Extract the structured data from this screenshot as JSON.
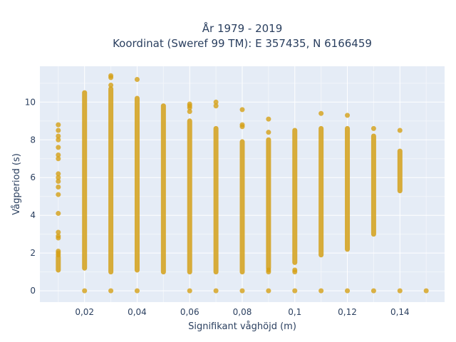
{
  "chart_data": {
    "type": "scatter",
    "title_line1": "År 1979 - 2019",
    "title_line2": "Koordinat (Sweref 99 TM): E 357435, N 6166459",
    "xlabel": "Signifikant våghöjd (m)",
    "ylabel": "Vågperiod (s)",
    "xlim": [
      0.003,
      0.157
    ],
    "ylim": [
      -0.6,
      11.9
    ],
    "x_ticks": [
      0.02,
      0.04,
      0.06,
      0.08,
      0.1,
      0.12,
      0.14
    ],
    "x_tick_labels": [
      "0,02",
      "0,04",
      "0,06",
      "0,08",
      "0,1",
      "0,12",
      "0,14"
    ],
    "y_ticks": [
      0,
      2,
      4,
      6,
      8,
      10
    ],
    "y_tick_labels": [
      "0",
      "2",
      "4",
      "6",
      "8",
      "10"
    ],
    "grid": true,
    "marker_color": "#d4a017",
    "background_color": "#e5ecf6",
    "columns": [
      {
        "x": 0.01,
        "band": [
          1.1,
          1.8
        ],
        "points": [
          8.8,
          8.5,
          8.2,
          8.0,
          7.6,
          7.2,
          7.0,
          6.2,
          6.0,
          5.8,
          5.5,
          5.1,
          4.1,
          3.1,
          2.9,
          2.8,
          2.1,
          2.0,
          1.9
        ]
      },
      {
        "x": 0.02,
        "band": [
          1.2,
          10.5
        ],
        "points": [
          0
        ]
      },
      {
        "x": 0.03,
        "band": [
          1.0,
          10.7
        ],
        "points": [
          11.4,
          11.3,
          10.9,
          0
        ]
      },
      {
        "x": 0.04,
        "band": [
          1.1,
          10.2
        ],
        "points": [
          11.2,
          0
        ]
      },
      {
        "x": 0.05,
        "band": [
          1.0,
          9.8
        ],
        "points": []
      },
      {
        "x": 0.06,
        "band": [
          1.0,
          9.0
        ],
        "points": [
          9.9,
          9.8,
          9.7,
          9.5,
          0
        ]
      },
      {
        "x": 0.07,
        "band": [
          1.0,
          8.6
        ],
        "points": [
          10.0,
          9.8,
          0
        ]
      },
      {
        "x": 0.08,
        "band": [
          1.0,
          7.9
        ],
        "points": [
          9.6,
          8.8,
          8.7,
          0
        ]
      },
      {
        "x": 0.09,
        "band": [
          1.2,
          8.0
        ],
        "points": [
          9.1,
          8.4,
          1.1,
          1.0,
          0
        ]
      },
      {
        "x": 0.1,
        "band": [
          1.5,
          8.5
        ],
        "points": [
          1.1,
          1.0,
          0
        ]
      },
      {
        "x": 0.11,
        "band": [
          1.9,
          8.6
        ],
        "points": [
          9.4,
          0
        ]
      },
      {
        "x": 0.12,
        "band": [
          2.2,
          8.6
        ],
        "points": [
          9.3,
          0
        ]
      },
      {
        "x": 0.13,
        "band": [
          3.0,
          8.2
        ],
        "points": [
          8.6,
          0
        ]
      },
      {
        "x": 0.14,
        "band": [
          5.3,
          7.4
        ],
        "points": [
          8.5,
          0
        ]
      },
      {
        "x": 0.15,
        "band": [],
        "points": [
          0
        ]
      }
    ]
  }
}
